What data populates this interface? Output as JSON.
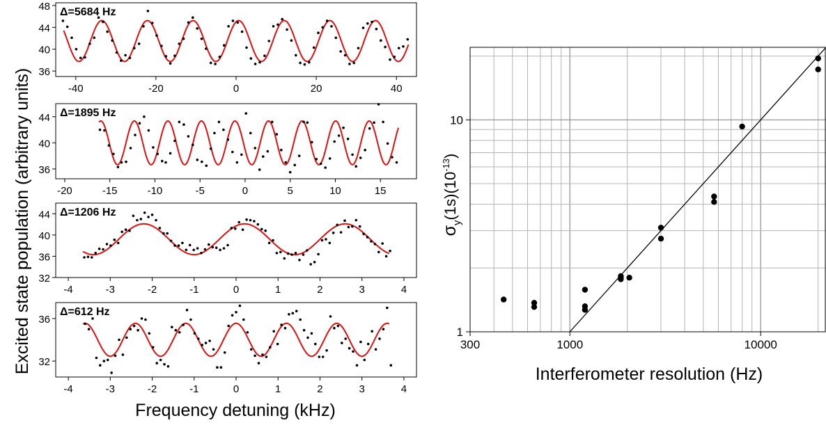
{
  "figure": {
    "left_ylabel": "Excited state population (arbitrary units)",
    "left_xlabel": "Frequency detuning (kHz)",
    "colors": {
      "fit": "#e01010",
      "points": "#000000",
      "grid": "#b4b4b4",
      "axis": "#000000"
    }
  },
  "chart_data": [
    {
      "type": "scatter",
      "title": "Δ=5684 Hz",
      "xlim": [
        -45,
        45
      ],
      "ylim": [
        35,
        48.5
      ],
      "xticks": [
        -40,
        -20,
        0,
        20,
        40
      ],
      "xtick_labels": [
        "-40",
        "-20",
        "0",
        "20",
        "40"
      ],
      "yticks": [
        36,
        40,
        44,
        48
      ],
      "ytick_labels": [
        "36",
        "40",
        "44",
        "48"
      ],
      "fit": {
        "center": 41.5,
        "amplitude": 3.75,
        "period": 11.38,
        "phase_x": -33.5,
        "x_range": [
          -43,
          43
        ]
      },
      "series": [
        {
          "x": [
            -43.2,
            -42.1,
            -41.0,
            -39.9,
            -38.8,
            -37.7,
            -36.5,
            -35.4,
            -34.3,
            -33.2,
            -32.1,
            -30.9,
            -29.8,
            -28.7,
            -27.6,
            -26.5,
            -25.4,
            -24.2,
            -23.1,
            -22.0,
            -20.9,
            -19.8,
            -18.6,
            -17.5,
            -16.4,
            -15.3,
            -14.2,
            -13.1,
            -11.9,
            -10.8,
            -9.7,
            -8.6,
            -7.5,
            -6.3,
            -5.2,
            -4.1,
            -3.0,
            -1.9,
            -0.8,
            0.4,
            1.5,
            2.6,
            3.7,
            4.8,
            5.9,
            7.1,
            8.2,
            9.3,
            10.4,
            11.5,
            12.7,
            13.8,
            14.9,
            16.0,
            17.1,
            18.2,
            19.4,
            20.5,
            21.6,
            22.7,
            23.8,
            24.9,
            26.1,
            27.2,
            28.3,
            29.4,
            30.5,
            31.7,
            32.8,
            33.9,
            35.0,
            36.1,
            37.2,
            38.4,
            39.5,
            40.6,
            41.7,
            42.8
          ],
          "y": [
            45.2,
            44.1,
            42.1,
            40.0,
            38.4,
            38.5,
            41.0,
            42.1,
            45.8,
            45.0,
            43.2,
            41.6,
            39.4,
            37.9,
            38.9,
            38.4,
            40.2,
            41.0,
            44.2,
            47.0,
            44.8,
            42.5,
            40.6,
            38.7,
            37.4,
            38.8,
            41.0,
            41.9,
            44.9,
            45.8,
            43.8,
            41.9,
            40.1,
            37.5,
            37.3,
            38.6,
            40.7,
            44.2,
            45.2,
            44.9,
            43.2,
            40.3,
            38.3,
            37.3,
            37.6,
            38.8,
            41.5,
            44.2,
            44.5,
            45.5,
            43.6,
            41.6,
            38.9,
            37.5,
            37.2,
            37.6,
            40.3,
            43.0,
            44.0,
            45.2,
            44.2,
            42.1,
            39.6,
            38.9,
            37.3,
            37.5,
            40.2,
            43.9,
            44.7,
            45.0,
            43.7,
            41.6,
            40.4,
            38.1,
            38.6,
            40.2,
            40.5,
            41.8
          ]
        }
      ]
    },
    {
      "type": "scatter",
      "title": "Δ=1895 Hz",
      "xlim": [
        -21,
        19
      ],
      "ylim": [
        34.5,
        46
      ],
      "xticks": [
        -20,
        -15,
        -10,
        -5,
        0,
        5,
        10,
        15
      ],
      "xtick_labels": [
        "-20",
        "-15",
        "-10",
        "-5",
        "0",
        "5",
        "10",
        "15"
      ],
      "yticks": [
        36,
        40,
        44
      ],
      "ytick_labels": [
        "36",
        "40",
        "44"
      ],
      "fit": {
        "center": 40.0,
        "amplitude": 3.35,
        "period": 3.72,
        "phase_x": -16.0,
        "x_range": [
          -16.2,
          17
        ]
      },
      "series": [
        {
          "x": [
            -16.1,
            -15.6,
            -15.1,
            -14.6,
            -14.1,
            -13.7,
            -13.2,
            -12.7,
            -12.2,
            -11.7,
            -11.2,
            -10.7,
            -10.2,
            -9.7,
            -9.2,
            -8.8,
            -8.3,
            -7.8,
            -7.3,
            -6.8,
            -6.3,
            -5.8,
            -5.3,
            -4.8,
            -4.3,
            -3.8,
            -3.4,
            -2.9,
            -2.4,
            -1.9,
            -1.4,
            -0.9,
            -0.4,
            0.1,
            0.6,
            1.1,
            1.6,
            2.0,
            2.5,
            3.0,
            3.5,
            4.0,
            4.5,
            5.0,
            5.5,
            6.0,
            6.5,
            6.9,
            7.4,
            7.9,
            8.4,
            8.9,
            9.4,
            9.9,
            10.4,
            10.9,
            11.4,
            11.9,
            12.3,
            12.8,
            13.3,
            13.8,
            14.3,
            14.8,
            15.3,
            15.8,
            16.3,
            16.8
          ],
          "y": [
            42.0,
            41.9,
            39.6,
            38.3,
            36.3,
            37.0,
            37.1,
            39.2,
            41.2,
            43.0,
            44.0,
            41.9,
            39.3,
            38.3,
            37.2,
            37.0,
            38.4,
            40.3,
            43.2,
            42.8,
            41.0,
            39.7,
            37.4,
            37.1,
            36.5,
            39.1,
            41.5,
            43.2,
            42.0,
            40.5,
            38.6,
            37.0,
            38.2,
            44.5,
            41.5,
            39.2,
            35.9,
            37.9,
            38.7,
            43.2,
            41.3,
            38.9,
            37.0,
            35.5,
            36.6,
            38.0,
            43.2,
            43.1,
            40.1,
            37.5,
            36.8,
            36.2,
            37.6,
            40.2,
            41.1,
            42.3,
            40.6,
            38.2,
            36.4,
            37.7,
            38.9,
            42.2,
            43.1,
            45.9,
            43.2,
            39.9,
            37.8,
            37.0
          ]
        }
      ]
    },
    {
      "type": "scatter",
      "title": "Δ=1206 Hz",
      "xlim": [
        -4.3,
        4.3
      ],
      "ylim": [
        32,
        46
      ],
      "xticks": [
        -4,
        -3,
        -2,
        -1,
        0,
        1,
        2,
        3,
        4
      ],
      "xtick_labels": [
        "-4",
        "-3",
        "-2",
        "-1",
        "0",
        "1",
        "2",
        "3",
        "4"
      ],
      "yticks": [
        32,
        36,
        40,
        44
      ],
      "ytick_labels": [
        "32",
        "36",
        "40",
        "44"
      ],
      "fit": {
        "center": 39.2,
        "amplitude": 2.9,
        "period": 2.4,
        "phase_x": -2.2,
        "x_range": [
          -3.65,
          3.65
        ]
      },
      "series": [
        {
          "x": [
            -3.62,
            -3.53,
            -3.44,
            -3.35,
            -3.26,
            -3.17,
            -3.08,
            -2.99,
            -2.9,
            -2.81,
            -2.72,
            -2.63,
            -2.54,
            -2.45,
            -2.36,
            -2.27,
            -2.18,
            -2.09,
            -2.0,
            -1.91,
            -1.82,
            -1.73,
            -1.64,
            -1.55,
            -1.46,
            -1.37,
            -1.28,
            -1.19,
            -1.1,
            -1.01,
            -0.92,
            -0.83,
            -0.74,
            -0.65,
            -0.56,
            -0.47,
            -0.38,
            -0.29,
            -0.2,
            -0.11,
            -0.02,
            0.07,
            0.16,
            0.25,
            0.34,
            0.43,
            0.52,
            0.61,
            0.7,
            0.79,
            0.88,
            0.97,
            1.06,
            1.15,
            1.24,
            1.33,
            1.42,
            1.51,
            1.6,
            1.69,
            1.78,
            1.87,
            1.96,
            2.05,
            2.14,
            2.23,
            2.32,
            2.41,
            2.5,
            2.59,
            2.68,
            2.77,
            2.86,
            2.95,
            3.04,
            3.13,
            3.22,
            3.31,
            3.4,
            3.49,
            3.58,
            3.67
          ],
          "y": [
            35.8,
            35.9,
            35.8,
            36.6,
            37.4,
            37.3,
            38.3,
            38.0,
            39.1,
            38.5,
            40.6,
            41.0,
            40.8,
            43.6,
            42.8,
            43.0,
            44.2,
            43.4,
            43.8,
            42.8,
            41.3,
            40.3,
            40.3,
            38.9,
            38.0,
            38.0,
            38.5,
            37.2,
            38.1,
            37.2,
            37.5,
            36.6,
            37.3,
            38.2,
            37.7,
            37.6,
            37.2,
            37.5,
            38.1,
            41.3,
            41.2,
            42.4,
            41.0,
            42.9,
            42.8,
            42.6,
            42.0,
            41.1,
            40.8,
            38.5,
            39.0,
            36.6,
            36.8,
            35.6,
            36.5,
            36.3,
            36.6,
            35.3,
            36.3,
            37.1,
            34.5,
            34.9,
            36.4,
            39.0,
            39.2,
            38.5,
            40.4,
            41.9,
            40.5,
            42.7,
            41.5,
            41.6,
            42.8,
            41.6,
            40.2,
            39.6,
            38.8,
            38.3,
            36.8,
            38.4,
            36.0,
            37.0
          ]
        }
      ]
    },
    {
      "type": "scatter",
      "title": "Δ=612 Hz",
      "xlim": [
        -4.3,
        4.3
      ],
      "ylim": [
        30.5,
        37.5
      ],
      "xticks": [
        -4,
        -3,
        -2,
        -1,
        0,
        1,
        2,
        3,
        4
      ],
      "xtick_labels": [
        "-4",
        "-3",
        "-2",
        "-1",
        "0",
        "1",
        "2",
        "3",
        "4"
      ],
      "yticks": [
        32,
        36
      ],
      "ytick_labels": [
        "32",
        "36"
      ],
      "fit": {
        "center": 34.0,
        "amplitude": 1.55,
        "period": 1.2,
        "phase_x": -3.6,
        "x_range": [
          -3.65,
          3.65
        ]
      },
      "series": [
        {
          "x": [
            -3.6,
            -3.51,
            -3.42,
            -3.33,
            -3.24,
            -3.15,
            -3.06,
            -2.97,
            -2.88,
            -2.79,
            -2.7,
            -2.61,
            -2.52,
            -2.43,
            -2.34,
            -2.25,
            -2.16,
            -2.07,
            -1.98,
            -1.89,
            -1.8,
            -1.71,
            -1.62,
            -1.53,
            -1.44,
            -1.35,
            -1.26,
            -1.17,
            -1.08,
            -0.99,
            -0.9,
            -0.81,
            -0.72,
            -0.63,
            -0.54,
            -0.45,
            -0.36,
            -0.27,
            -0.18,
            -0.09,
            0.0,
            0.09,
            0.18,
            0.27,
            0.36,
            0.45,
            0.54,
            0.63,
            0.72,
            0.81,
            0.9,
            0.99,
            1.08,
            1.17,
            1.26,
            1.35,
            1.44,
            1.53,
            1.62,
            1.71,
            1.8,
            1.89,
            1.98,
            2.07,
            2.16,
            2.25,
            2.34,
            2.43,
            2.52,
            2.61,
            2.7,
            2.79,
            2.88,
            2.97,
            3.06,
            3.15,
            3.24,
            3.33,
            3.42,
            3.51,
            3.6,
            3.69
          ],
          "y": [
            35.5,
            35.0,
            36.0,
            32.3,
            31.6,
            32.0,
            32.1,
            30.9,
            32.5,
            34.0,
            32.6,
            34.2,
            35.0,
            35.3,
            34.9,
            36.0,
            35.9,
            34.6,
            33.3,
            31.8,
            32.1,
            31.7,
            31.5,
            35.2,
            34.9,
            34.7,
            35.4,
            36.8,
            35.9,
            34.6,
            34.1,
            33.5,
            33.7,
            33.9,
            33.1,
            31.4,
            31.4,
            32.8,
            35.3,
            36.3,
            36.6,
            37.2,
            35.9,
            34.7,
            33.1,
            32.5,
            31.8,
            32.6,
            32.4,
            33.3,
            34.8,
            33.6,
            35.4,
            35.1,
            36.4,
            36.5,
            36.7,
            35.9,
            34.9,
            34.2,
            34.6,
            33.6,
            32.4,
            32.4,
            33.0,
            36.2,
            35.1,
            35.3,
            33.7,
            34.1,
            33.2,
            32.9,
            31.6,
            33.8,
            32.1,
            33.6,
            34.8,
            33.1,
            34.1,
            35.0,
            37.0,
            31.6
          ]
        }
      ]
    },
    {
      "type": "scatter",
      "title": "",
      "xlabel": "Interferometer resolution (Hz)",
      "ylabel": "σy(1s)(10⁻¹³)",
      "xscale": "log",
      "yscale": "log",
      "xlim": [
        300,
        22000
      ],
      "ylim": [
        1,
        22
      ],
      "xticks": [
        300,
        1000,
        10000
      ],
      "xtick_labels": [
        "300",
        "1000",
        "10000"
      ],
      "yticks": [
        1,
        10
      ],
      "ytick_labels": [
        "1",
        "10"
      ],
      "grid": true,
      "reference_line": {
        "x": [
          1000,
          22000
        ],
        "y": [
          1.0,
          22.0
        ]
      },
      "series": [
        {
          "x": [
            450,
            650,
            650,
            1200,
            1200,
            1200,
            1200,
            1850,
            1850,
            1850,
            2050,
            3000,
            3000,
            5700,
            5700,
            8000,
            20000,
            20000
          ],
          "y": [
            1.42,
            1.37,
            1.31,
            1.58,
            1.32,
            1.27,
            1.27,
            1.83,
            1.8,
            1.77,
            1.8,
            3.1,
            2.75,
            4.35,
            4.1,
            9.3,
            19.5,
            17.3
          ]
        }
      ]
    }
  ]
}
